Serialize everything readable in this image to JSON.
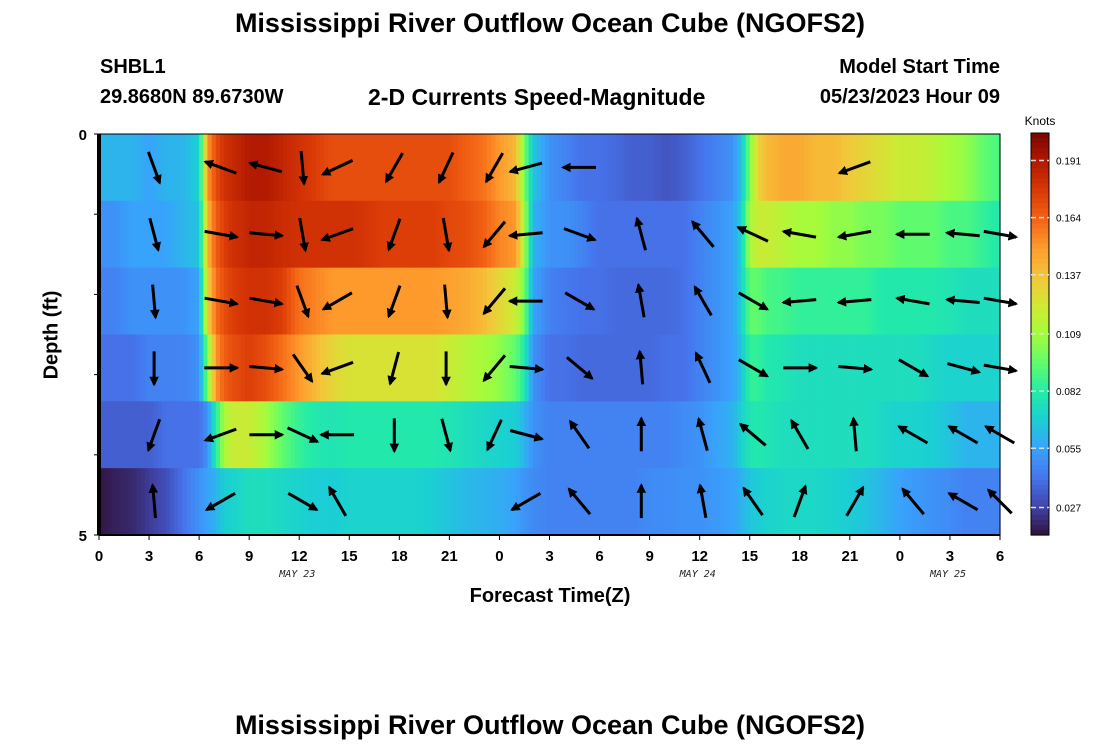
{
  "title": "Mississippi River Outflow Ocean Cube (NGOFS2)",
  "title_repeat": "Mississippi River Outflow Ocean Cube (NGOFS2)",
  "station": {
    "name": "SHBL1",
    "coords": "29.8680N  89.6730W"
  },
  "subtitle": "2-D Currents Speed-Magnitude",
  "model_start": {
    "label": "Model Start Time",
    "value": "05/23/2023 Hour 09"
  },
  "chart_data": {
    "type": "heatmap",
    "title": "2-D Currents Speed-Magnitude",
    "xlabel": "Forecast Time(Z)",
    "ylabel": "Depth (ft)",
    "x_tick_labels": [
      "0",
      "3",
      "6",
      "9",
      "12",
      "15",
      "18",
      "21",
      "0",
      "3",
      "6",
      "9",
      "12",
      "15",
      "18",
      "21",
      "0",
      "3",
      "6"
    ],
    "x_range_hours": [
      0,
      54
    ],
    "date_labels": [
      {
        "text": "MAY 23",
        "hour": 12
      },
      {
        "text": "MAY 24",
        "hour": 36
      },
      {
        "text": "MAY 25",
        "hour": 51
      }
    ],
    "y_range": [
      0,
      5
    ],
    "y_tick_labels": [
      "0",
      "5"
    ],
    "n_layers": 6,
    "colorbar": {
      "label": "Knots",
      "range": [
        0.014,
        0.204
      ],
      "ticks": [
        0.191,
        0.164,
        0.137,
        0.109,
        0.082,
        0.055,
        0.027
      ],
      "colormap": [
        "#30123b",
        "#4145ab",
        "#4675ed",
        "#39a2fc",
        "#1bcfd4",
        "#24eca6",
        "#61fc6c",
        "#a4fc3b",
        "#d1e834",
        "#f3c63a",
        "#fe9b2d",
        "#f36315",
        "#d93806",
        "#b11901",
        "#7a0402"
      ]
    },
    "hour_samples": [
      0,
      1,
      2,
      3,
      4,
      5,
      6,
      6.5,
      7,
      7.5,
      8,
      9,
      10,
      11,
      12,
      13,
      14,
      15,
      16,
      17,
      18,
      19,
      20,
      21,
      22,
      23,
      24,
      25,
      25.5,
      26,
      27,
      28,
      29,
      30,
      31,
      32,
      33,
      34,
      35,
      36,
      37,
      38,
      38.5,
      39,
      39.5,
      40,
      41,
      42,
      43,
      44,
      45,
      46,
      47,
      48,
      49,
      50,
      51,
      52,
      53,
      54
    ],
    "speed_layers": [
      [
        0.06,
        0.06,
        0.06,
        0.055,
        0.06,
        0.06,
        0.07,
        0.15,
        0.17,
        0.18,
        0.183,
        0.19,
        0.19,
        0.185,
        0.18,
        0.175,
        0.17,
        0.17,
        0.17,
        0.17,
        0.17,
        0.17,
        0.17,
        0.17,
        0.165,
        0.16,
        0.15,
        0.14,
        0.1,
        0.065,
        0.05,
        0.045,
        0.04,
        0.04,
        0.038,
        0.035,
        0.035,
        0.032,
        0.035,
        0.04,
        0.045,
        0.05,
        0.065,
        0.1,
        0.13,
        0.14,
        0.145,
        0.145,
        0.14,
        0.14,
        0.135,
        0.13,
        0.125,
        0.12,
        0.12,
        0.115,
        0.11,
        0.105,
        0.095,
        0.09
      ],
      [
        0.05,
        0.05,
        0.055,
        0.055,
        0.055,
        0.06,
        0.065,
        0.14,
        0.165,
        0.175,
        0.18,
        0.185,
        0.185,
        0.182,
        0.18,
        0.18,
        0.18,
        0.18,
        0.178,
        0.175,
        0.175,
        0.175,
        0.175,
        0.172,
        0.17,
        0.165,
        0.155,
        0.15,
        0.11,
        0.06,
        0.05,
        0.05,
        0.045,
        0.04,
        0.04,
        0.04,
        0.04,
        0.04,
        0.04,
        0.045,
        0.05,
        0.055,
        0.07,
        0.11,
        0.12,
        0.12,
        0.115,
        0.11,
        0.11,
        0.105,
        0.105,
        0.1,
        0.1,
        0.095,
        0.095,
        0.095,
        0.09,
        0.09,
        0.085,
        0.08
      ],
      [
        0.045,
        0.045,
        0.05,
        0.05,
        0.05,
        0.05,
        0.055,
        0.13,
        0.16,
        0.17,
        0.175,
        0.18,
        0.18,
        0.175,
        0.16,
        0.155,
        0.15,
        0.15,
        0.15,
        0.15,
        0.15,
        0.15,
        0.15,
        0.148,
        0.145,
        0.14,
        0.13,
        0.12,
        0.1,
        0.055,
        0.045,
        0.042,
        0.04,
        0.04,
        0.038,
        0.038,
        0.038,
        0.038,
        0.04,
        0.045,
        0.05,
        0.055,
        0.07,
        0.095,
        0.095,
        0.09,
        0.088,
        0.085,
        0.085,
        0.085,
        0.085,
        0.085,
        0.08,
        0.08,
        0.08,
        0.08,
        0.078,
        0.075,
        0.075,
        0.075
      ],
      [
        0.04,
        0.04,
        0.04,
        0.045,
        0.045,
        0.045,
        0.05,
        0.1,
        0.15,
        0.165,
        0.17,
        0.175,
        0.17,
        0.16,
        0.15,
        0.14,
        0.13,
        0.125,
        0.125,
        0.125,
        0.125,
        0.125,
        0.125,
        0.12,
        0.115,
        0.11,
        0.105,
        0.095,
        0.08,
        0.05,
        0.04,
        0.04,
        0.038,
        0.038,
        0.038,
        0.038,
        0.038,
        0.04,
        0.04,
        0.045,
        0.05,
        0.055,
        0.065,
        0.085,
        0.085,
        0.08,
        0.078,
        0.075,
        0.075,
        0.075,
        0.075,
        0.075,
        0.075,
        0.075,
        0.075,
        0.072,
        0.07,
        0.07,
        0.07,
        0.07
      ],
      [
        0.035,
        0.035,
        0.035,
        0.035,
        0.04,
        0.04,
        0.04,
        0.05,
        0.08,
        0.11,
        0.12,
        0.12,
        0.11,
        0.095,
        0.085,
        0.08,
        0.078,
        0.08,
        0.08,
        0.08,
        0.08,
        0.08,
        0.08,
        0.078,
        0.075,
        0.072,
        0.07,
        0.068,
        0.06,
        0.05,
        0.045,
        0.045,
        0.045,
        0.045,
        0.045,
        0.045,
        0.045,
        0.045,
        0.048,
        0.05,
        0.055,
        0.06,
        0.07,
        0.078,
        0.08,
        0.078,
        0.075,
        0.075,
        0.075,
        0.075,
        0.075,
        0.075,
        0.072,
        0.07,
        0.07,
        0.068,
        0.065,
        0.06,
        0.06,
        0.06
      ],
      [
        0.015,
        0.018,
        0.02,
        0.025,
        0.03,
        0.04,
        0.05,
        0.055,
        0.06,
        0.068,
        0.07,
        0.075,
        0.075,
        0.072,
        0.07,
        0.068,
        0.068,
        0.07,
        0.07,
        0.07,
        0.07,
        0.07,
        0.068,
        0.065,
        0.062,
        0.06,
        0.058,
        0.055,
        0.05,
        0.048,
        0.045,
        0.045,
        0.045,
        0.045,
        0.045,
        0.045,
        0.048,
        0.048,
        0.05,
        0.05,
        0.052,
        0.055,
        0.06,
        0.065,
        0.068,
        0.07,
        0.072,
        0.072,
        0.072,
        0.07,
        0.068,
        0.065,
        0.06,
        0.055,
        0.052,
        0.05,
        0.048,
        0.045,
        0.045,
        0.045
      ]
    ],
    "vector_hours": [
      3.3,
      7.3,
      10.0,
      12.2,
      14.3,
      17.7,
      20.8,
      23.7,
      25.6,
      28.8,
      32.5,
      36.2,
      39.2,
      42.0,
      45.3,
      48.8,
      51.8,
      54.0
    ],
    "vector_dirs_deg": [
      [
        160,
        290,
        285,
        175,
        245,
        210,
        205,
        210,
        255,
        270,
        null,
        null,
        null,
        null,
        250,
        null,
        null,
        null
      ],
      [
        165,
        100,
        95,
        170,
        250,
        200,
        170,
        220,
        265,
        110,
        345,
        320,
        295,
        280,
        260,
        270,
        275,
        100
      ],
      [
        175,
        100,
        100,
        160,
        240,
        200,
        175,
        220,
        270,
        120,
        350,
        330,
        120,
        265,
        265,
        280,
        275,
        100
      ],
      [
        180,
        90,
        95,
        145,
        250,
        195,
        180,
        220,
        95,
        130,
        355,
        335,
        120,
        90,
        95,
        120,
        105,
        100
      ],
      [
        200,
        250,
        90,
        115,
        270,
        180,
        165,
        205,
        105,
        325,
        360,
        345,
        310,
        330,
        355,
        300,
        300,
        300
      ],
      [
        355,
        240,
        null,
        120,
        330,
        null,
        null,
        null,
        240,
        320,
        360,
        350,
        325,
        20,
        30,
        320,
        300,
        315
      ]
    ]
  }
}
